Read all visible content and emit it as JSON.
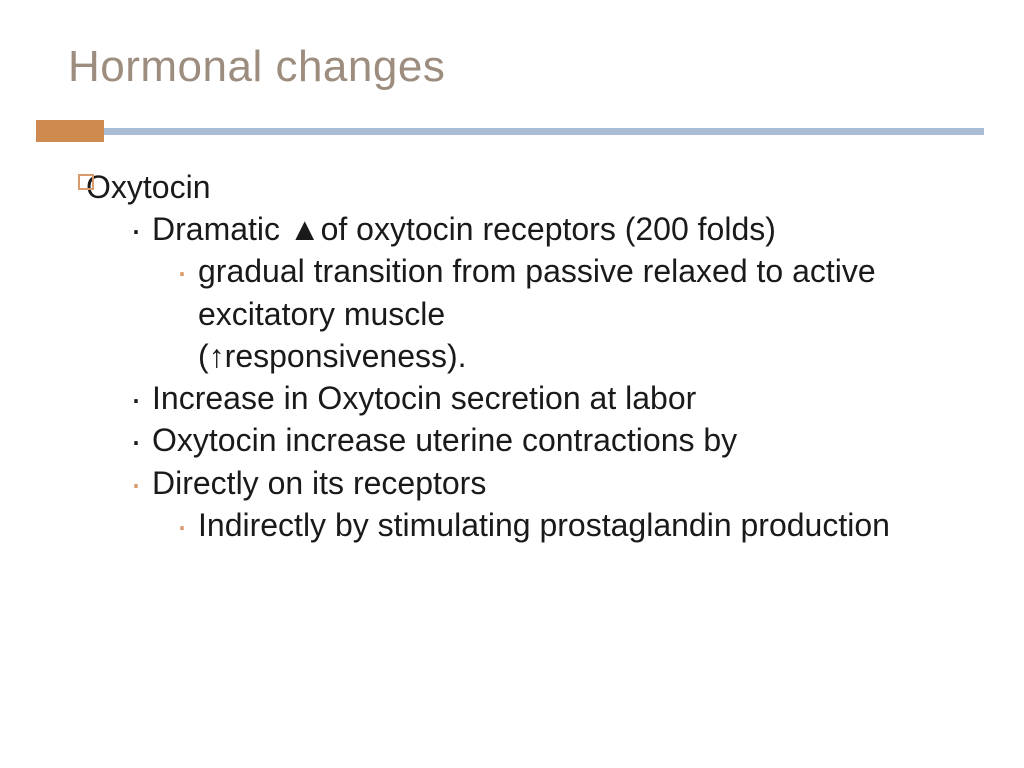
{
  "title": {
    "text": "Hormonal changes",
    "color": "#9d8d7f",
    "fontsize": 44
  },
  "accent": {
    "bar_color": "#cf8b4f",
    "rule_color": "#a9bed4"
  },
  "content": {
    "l1_text": "Oxytocin",
    "l2a_text": " Dramatic ▲of oxytocin receptors (200 folds)",
    "l3a_text": " gradual transition from passive relaxed to active excitatory muscle",
    "l3a_cont": " (↑responsiveness).",
    "l2b_text": " Increase in Oxytocin secretion at labor",
    "l2c_text": " Oxytocin increase uterine contractions by",
    "l2d_text": "Directly on its receptors",
    "l3b_text": " Indirectly by stimulating prostaglandin production",
    "text_color": "#1a1a1a",
    "fontsize": 32
  }
}
